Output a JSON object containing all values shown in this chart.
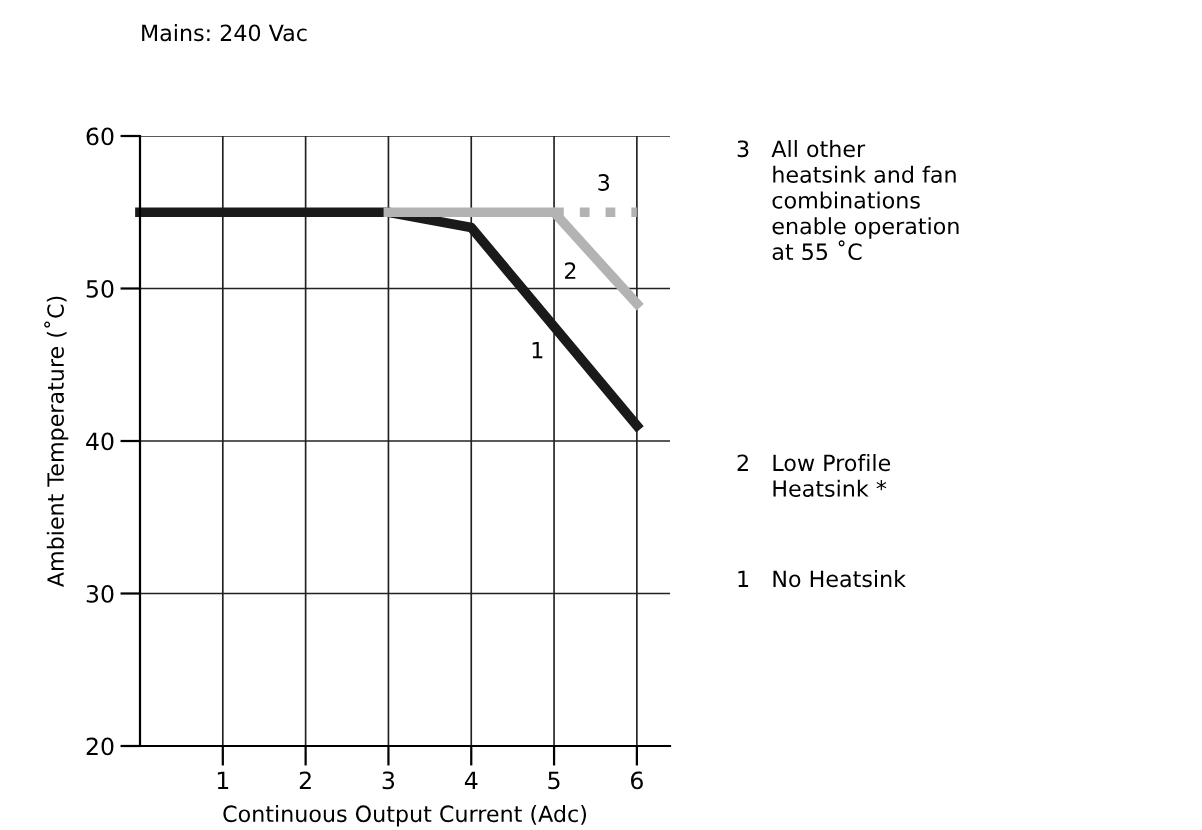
{
  "chart_data": {
    "type": "line",
    "xlabel": "Continuous Output Current (Adc)",
    "ylabel": "Ambient Temperature (˚C)",
    "series": [
      {
        "name": "1",
        "color": "#1a1a1a",
        "x": [
          0,
          3,
          4,
          6
        ],
        "values": [
          55,
          55,
          54,
          41
        ],
        "line_style": "solid"
      },
      {
        "name": "2",
        "color": "#b3b3b3",
        "x": [
          3,
          5,
          6
        ],
        "values": [
          55,
          55,
          49
        ],
        "line_style": "solid"
      },
      {
        "name": "3",
        "color": "#b3b3b3",
        "x": [
          5,
          6
        ],
        "values": [
          55,
          55
        ],
        "line_style": "dotted"
      }
    ],
    "xlim": [
      0,
      6.4
    ],
    "xticks": [
      1,
      2,
      3,
      4,
      5,
      6
    ],
    "ylim": [
      20,
      60
    ],
    "yticks": [
      20,
      30,
      40,
      50,
      60
    ],
    "grid": true,
    "marker": "none",
    "annotations": [
      "Mains: 240 Vac",
      "3   All other\n     heatsink and fan\n     combinations\n     enable operation\n     at 55 ˚C",
      "2   Low Profile\n     Heatsink *",
      "1   No Heatsink"
    ]
  }
}
